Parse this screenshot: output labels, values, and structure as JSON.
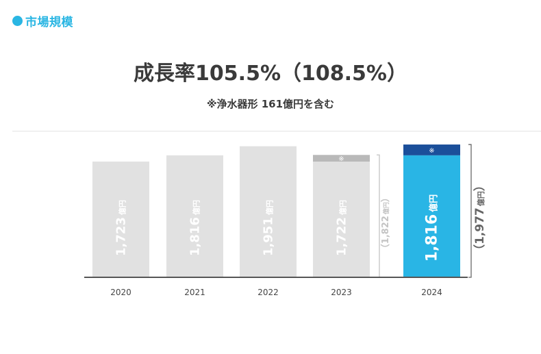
{
  "section": {
    "label": "市場規模",
    "dot_color": "#2ab6e3"
  },
  "headline": "成長率105.5%（108.5%）",
  "subline": "※浄水器形 161億円を含む",
  "chart_data": {
    "type": "bar",
    "categories": [
      "2020",
      "2021",
      "2022",
      "2023",
      "2024"
    ],
    "values": [
      1723,
      1816,
      1951,
      1722,
      1816
    ],
    "stacked_extra": [
      {
        "category": "2023",
        "marker": "※",
        "value": 100,
        "total_label_number": "1,822",
        "total_label_unit": "億円"
      },
      {
        "category": "2024",
        "marker": "※",
        "value": 161,
        "total_label_number": "1,977",
        "total_label_unit": "億円"
      }
    ],
    "value_labels": [
      {
        "number": "1,723",
        "unit": "億円"
      },
      {
        "number": "1,816",
        "unit": "億円"
      },
      {
        "number": "1,951",
        "unit": "億円"
      },
      {
        "number": "1,722",
        "unit": "億円"
      },
      {
        "number": "1,816",
        "unit": "億円"
      }
    ],
    "highlight_category": "2024",
    "colors": {
      "bar": "#e1e1e1",
      "bar_extra": "#b9b9b9",
      "highlight": "#29b5e5",
      "highlight_extra": "#1b4f9a",
      "label_on_bar": "#ffffff",
      "bracket": "#c4c4c4",
      "bracket_highlight": "#666666",
      "axis": "#555555"
    },
    "title": "",
    "xlabel": "",
    "ylabel": "",
    "ylim": [
      0,
      2000
    ]
  }
}
